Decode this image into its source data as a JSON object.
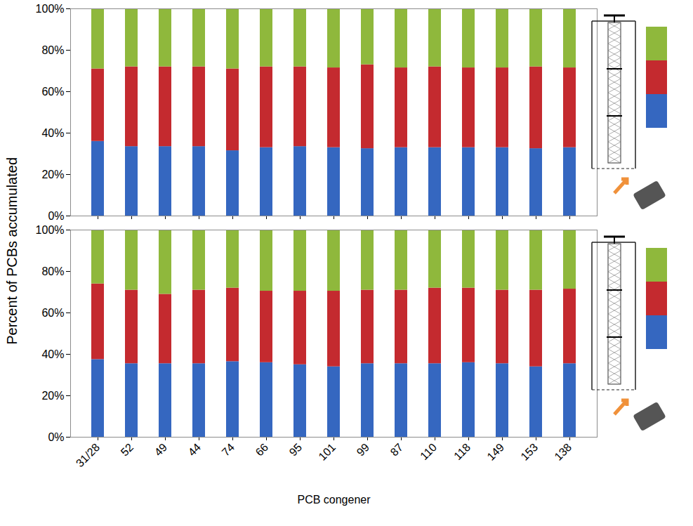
{
  "chart_data": [
    {
      "type": "bar",
      "stacked": true,
      "ylabel": "Percent of PCBs accumulated",
      "categories": [
        "31/28",
        "52",
        "49",
        "44",
        "74",
        "66",
        "95",
        "101",
        "99",
        "87",
        "110",
        "118",
        "149",
        "153",
        "138"
      ],
      "series": [
        {
          "color": "#3567c0",
          "values": [
            36,
            33.5,
            33.5,
            33.5,
            31.5,
            33,
            33.5,
            33,
            32.5,
            33,
            33,
            33,
            33,
            32.5,
            33
          ]
        },
        {
          "color": "#c42a2f",
          "values": [
            35,
            38.5,
            38.5,
            38.5,
            39.5,
            39,
            38.5,
            38.5,
            40.5,
            38.5,
            39,
            38.5,
            38.5,
            39.5,
            38.5
          ]
        },
        {
          "color": "#8fb83c",
          "values": [
            29,
            28,
            28,
            28,
            29,
            28,
            28,
            28.5,
            27,
            28.5,
            28,
            28.5,
            28.5,
            28,
            28.5
          ]
        }
      ],
      "ylim": [
        0,
        100
      ],
      "yticks": [
        {
          "value": 0,
          "label": "0%"
        },
        {
          "value": 20,
          "label": "20%"
        },
        {
          "value": 40,
          "label": "40%"
        },
        {
          "value": 60,
          "label": "60%"
        },
        {
          "value": 80,
          "label": "80%"
        },
        {
          "value": 100,
          "label": "100%"
        }
      ],
      "grid": false,
      "tick_labels": "y"
    },
    {
      "type": "bar",
      "stacked": true,
      "xlabel": "PCB congener",
      "categories": [
        "31/28",
        "52",
        "49",
        "44",
        "74",
        "66",
        "95",
        "101",
        "99",
        "87",
        "110",
        "118",
        "149",
        "153",
        "138"
      ],
      "series": [
        {
          "color": "#3567c0",
          "values": [
            37.5,
            35.5,
            35.5,
            35.5,
            36.5,
            36,
            35,
            34,
            35.5,
            35.5,
            35.5,
            36,
            35.5,
            34,
            35.5
          ]
        },
        {
          "color": "#c42a2f",
          "values": [
            36.5,
            35.5,
            33.5,
            35.5,
            35.5,
            34.5,
            35.5,
            36.5,
            35.5,
            35.5,
            36.5,
            36,
            35.5,
            37,
            36
          ]
        },
        {
          "color": "#8fb83c",
          "values": [
            26,
            29,
            31,
            29,
            28,
            29.5,
            29.5,
            29.5,
            29,
            29,
            28,
            28,
            29,
            29,
            28.5
          ]
        }
      ],
      "ylim": [
        0,
        100
      ],
      "yticks": [
        {
          "value": 0,
          "label": "0%"
        },
        {
          "value": 20,
          "label": "20%"
        },
        {
          "value": 40,
          "label": "40%"
        },
        {
          "value": 60,
          "label": "60%"
        },
        {
          "value": 80,
          "label": "80%"
        },
        {
          "value": 100,
          "label": "100%"
        }
      ],
      "grid": false
    }
  ]
}
